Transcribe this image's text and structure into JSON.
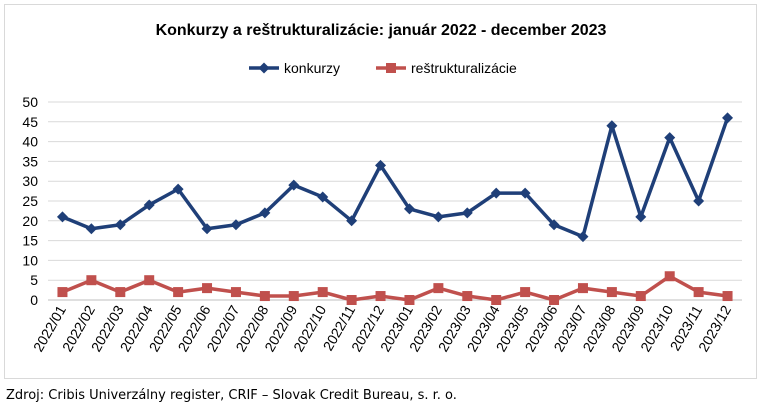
{
  "chart_data": {
    "type": "line",
    "title": "Konkurzy a reštrukturalizácie: január 2022 - december 2023",
    "categories": [
      "2022/01",
      "2022/02",
      "2022/03",
      "2022/04",
      "2022/05",
      "2022/06",
      "2022/07",
      "2022/08",
      "2022/09",
      "2022/10",
      "2022/11",
      "2022/12",
      "2023/01",
      "2023/02",
      "2023/03",
      "2023/04",
      "2023/05",
      "2023/06",
      "2023/07",
      "2023/08",
      "2023/09",
      "2023/10",
      "2023/11",
      "2023/12"
    ],
    "series": [
      {
        "name": "konkurzy",
        "color": "#1f3f78",
        "marker": "diamond",
        "values": [
          21,
          18,
          19,
          24,
          28,
          18,
          19,
          22,
          29,
          26,
          20,
          34,
          23,
          21,
          22,
          27,
          27,
          19,
          16,
          44,
          21,
          41,
          25,
          46
        ]
      },
      {
        "name": "reštrukturalizácie",
        "color": "#c0504d",
        "marker": "square",
        "values": [
          2,
          5,
          2,
          5,
          2,
          3,
          2,
          1,
          1,
          2,
          0,
          1,
          0,
          3,
          1,
          0,
          2,
          0,
          3,
          2,
          1,
          6,
          2,
          1
        ]
      }
    ],
    "ylim": [
      0,
      50
    ],
    "yticks": [
      0,
      5,
      10,
      15,
      20,
      25,
      30,
      35,
      40,
      45,
      50
    ],
    "grid": true,
    "legend_position": "top"
  },
  "source_note": "Zdroj: Cribis Univerzálny register, CRIF – Slovak Credit Bureau, s. r. o."
}
